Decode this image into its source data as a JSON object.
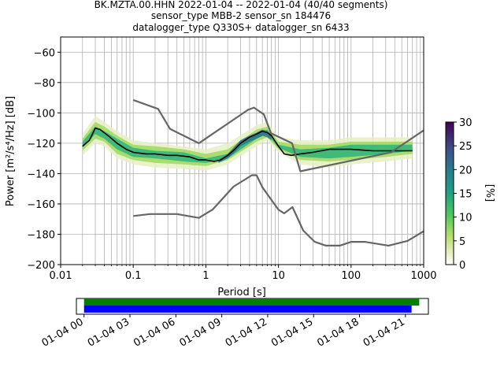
{
  "chart_data": [
    {
      "type": "heatmap",
      "title_lines": [
        "BK.MZTA.00.HHN   2022-01-04 -- 2022-01-04  (40/40 segments)",
        "sensor_type MBB-2 sensor_sn 184476",
        "datalogger_type Q330S+ datalogger_sn 6433"
      ],
      "xlabel": "Period [s]",
      "ylabel": "Power [m²/s⁴/Hz] [dB]",
      "xscale": "log",
      "xlim": [
        0.01,
        1000
      ],
      "ylim": [
        -200,
        -50
      ],
      "xticks": [
        0.01,
        0.1,
        1,
        10,
        100,
        1000
      ],
      "xtick_labels": [
        "0.01",
        "0.1",
        "1",
        "10",
        "100",
        "1000"
      ],
      "yticks": [
        -60,
        -80,
        -100,
        -120,
        -140,
        -160,
        -180,
        -200
      ],
      "ytick_labels": [
        "−60",
        "−80",
        "−100",
        "−120",
        "−140",
        "−160",
        "−180",
        "−200"
      ],
      "grid": true,
      "colorbar": {
        "label": "[%]",
        "range": [
          0,
          30
        ],
        "ticks": [
          0,
          5,
          10,
          15,
          20,
          25,
          30
        ],
        "tick_labels": [
          "0",
          "5",
          "10",
          "15",
          "20",
          "25",
          "30"
        ]
      },
      "series": [
        {
          "role": "mode",
          "color": "#000000",
          "x": [
            0.02,
            0.025,
            0.03,
            0.035,
            0.045,
            0.06,
            0.08,
            0.1,
            0.15,
            0.2,
            0.3,
            0.4,
            0.6,
            0.8,
            1.0,
            1.3,
            1.6,
            2.0,
            2.5,
            3.0,
            4.0,
            5.0,
            6.0,
            7.0,
            8.0,
            10,
            12,
            15,
            20,
            30,
            50,
            100,
            200,
            400,
            700
          ],
          "y": [
            -122,
            -118,
            -110,
            -111,
            -115,
            -120,
            -124,
            -126,
            -127,
            -127,
            -128,
            -128,
            -129,
            -131,
            -131,
            -132,
            -131,
            -128,
            -124,
            -120,
            -116,
            -114,
            -112,
            -113,
            -115,
            -122,
            -127,
            -128,
            -127,
            -126,
            -124,
            -124,
            -125,
            -125,
            -125
          ]
        },
        {
          "role": "noise-model-high",
          "color": "#666666",
          "x": [
            0.1,
            0.22,
            0.32,
            0.8,
            3.8,
            4.6,
            6.3,
            7.9,
            15.4,
            20,
            354.8,
            1000
          ],
          "y": [
            -91.5,
            -97.4,
            -110.5,
            -120.0,
            -98.0,
            -96.5,
            -101.0,
            -113.5,
            -120.0,
            -138.5,
            -126.0,
            -111.5
          ]
        },
        {
          "role": "noise-model-low",
          "color": "#666666",
          "x": [
            0.1,
            0.17,
            0.4,
            0.8,
            1.24,
            2.4,
            4.3,
            5.0,
            6.0,
            10.0,
            12.0,
            15.6,
            21.9,
            31.6,
            45.0,
            70.0,
            101.0,
            154.0,
            328.0,
            600.0,
            1000.0
          ],
          "y": [
            -168.0,
            -166.7,
            -166.7,
            -169.2,
            -163.7,
            -148.6,
            -141.1,
            -141.1,
            -149.0,
            -163.8,
            -166.2,
            -162.1,
            -177.5,
            -185.0,
            -187.5,
            -187.5,
            -185.0,
            -185.0,
            -187.5,
            -184.4,
            -178.0
          ]
        }
      ],
      "histogram_bands": [
        {
          "x": [
            0.02,
            0.03,
            0.04,
            0.06,
            0.1,
            0.2,
            0.5,
            1.0,
            2.0,
            5.0,
            7.0,
            10,
            20,
            50,
            100,
            300,
            700
          ],
          "y_low": [
            -128,
            -120,
            -122,
            -130,
            -134,
            -136,
            -137,
            -138,
            -134,
            -122,
            -118,
            -126,
            -134,
            -136,
            -134,
            -132,
            -130
          ],
          "y_high": [
            -114,
            -102,
            -106,
            -112,
            -118,
            -120,
            -122,
            -124,
            -120,
            -108,
            -106,
            -116,
            -118,
            -118,
            -116,
            -116,
            -116
          ],
          "level": 2
        },
        {
          "x": [
            0.02,
            0.03,
            0.04,
            0.06,
            0.1,
            0.2,
            0.5,
            1.0,
            2.0,
            5.0,
            7.0,
            10,
            20,
            50,
            100,
            300,
            700
          ],
          "y_low": [
            -125,
            -117,
            -119,
            -127,
            -131,
            -133,
            -134,
            -135,
            -131,
            -119,
            -116,
            -124,
            -131,
            -132,
            -131,
            -129,
            -127
          ],
          "y_high": [
            -117,
            -106,
            -109,
            -115,
            -121,
            -122,
            -124,
            -127,
            -124,
            -111,
            -109,
            -119,
            -121,
            -121,
            -119,
            -119,
            -119
          ],
          "level": 6
        },
        {
          "x": [
            0.02,
            0.03,
            0.04,
            0.06,
            0.1,
            0.2,
            0.5,
            1.0,
            2.0,
            5.0,
            7.0,
            10,
            20,
            50,
            100,
            300,
            700
          ],
          "y_low": [
            -123,
            -114,
            -117,
            -124,
            -129,
            -130,
            -132,
            -133,
            -130,
            -117,
            -114,
            -123,
            -129,
            -130,
            -129,
            -127,
            -125
          ],
          "y_high": [
            -119,
            -109,
            -112,
            -117,
            -123,
            -125,
            -126,
            -130,
            -127,
            -114,
            -111,
            -121,
            -124,
            -123,
            -121,
            -121,
            -121
          ],
          "level": 12
        },
        {
          "x": [
            1.5,
            2,
            2.5,
            3,
            4,
            5,
            6,
            7,
            8
          ],
          "y_low": [
            -133,
            -130,
            -126,
            -122,
            -119,
            -117,
            -115,
            -116,
            -118
          ],
          "y_high": [
            -131,
            -127,
            -122,
            -118,
            -115,
            -113,
            -111,
            -112,
            -114
          ],
          "level": 22
        }
      ]
    },
    {
      "type": "timeline",
      "xticks": [
        "01-04 00",
        "01-04 03",
        "01-04 06",
        "01-04 09",
        "01-04 12",
        "01-04 15",
        "01-04 18",
        "01-04 21"
      ],
      "xlim_hours": [
        -0.5,
        22.5
      ],
      "bars": [
        {
          "color": "#008000",
          "start_hour": 0,
          "end_hour": 21.9
        },
        {
          "color": "#0000ff",
          "start_hour": 0,
          "end_hour": 21.4
        }
      ]
    }
  ]
}
